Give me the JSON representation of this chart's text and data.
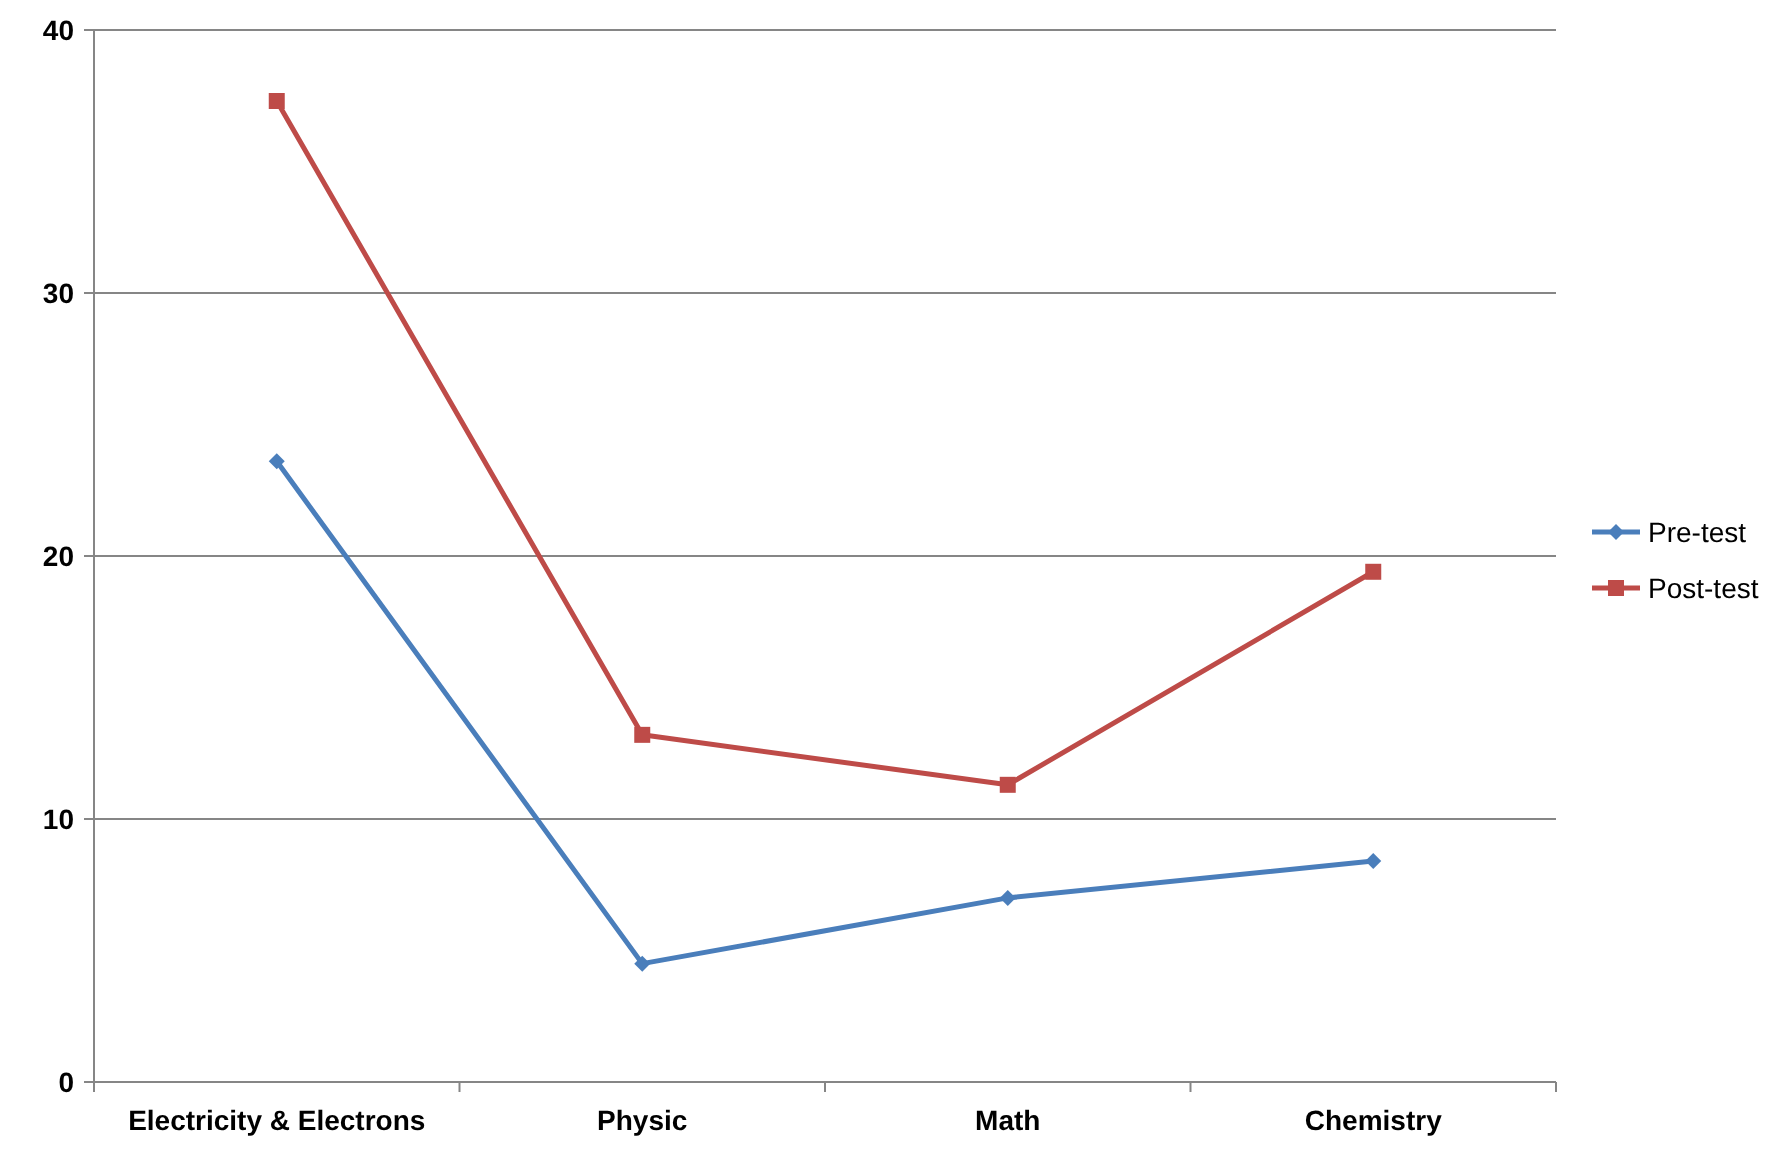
{
  "chart_data": {
    "type": "line",
    "categories": [
      "Electricity & Electrons",
      "Physic",
      "Math",
      "Chemistry"
    ],
    "series": [
      {
        "name": "Pre-test",
        "color": "#4a7ebb",
        "marker": "diamond",
        "values": [
          23.6,
          4.5,
          7.0,
          8.4
        ]
      },
      {
        "name": "Post-test",
        "color": "#be4b48",
        "marker": "square",
        "values": [
          37.3,
          13.2,
          11.3,
          19.4
        ]
      }
    ],
    "ylim": [
      0,
      40
    ],
    "yticks": [
      0,
      10,
      20,
      30,
      40
    ],
    "grid": "y",
    "legend": "right"
  }
}
